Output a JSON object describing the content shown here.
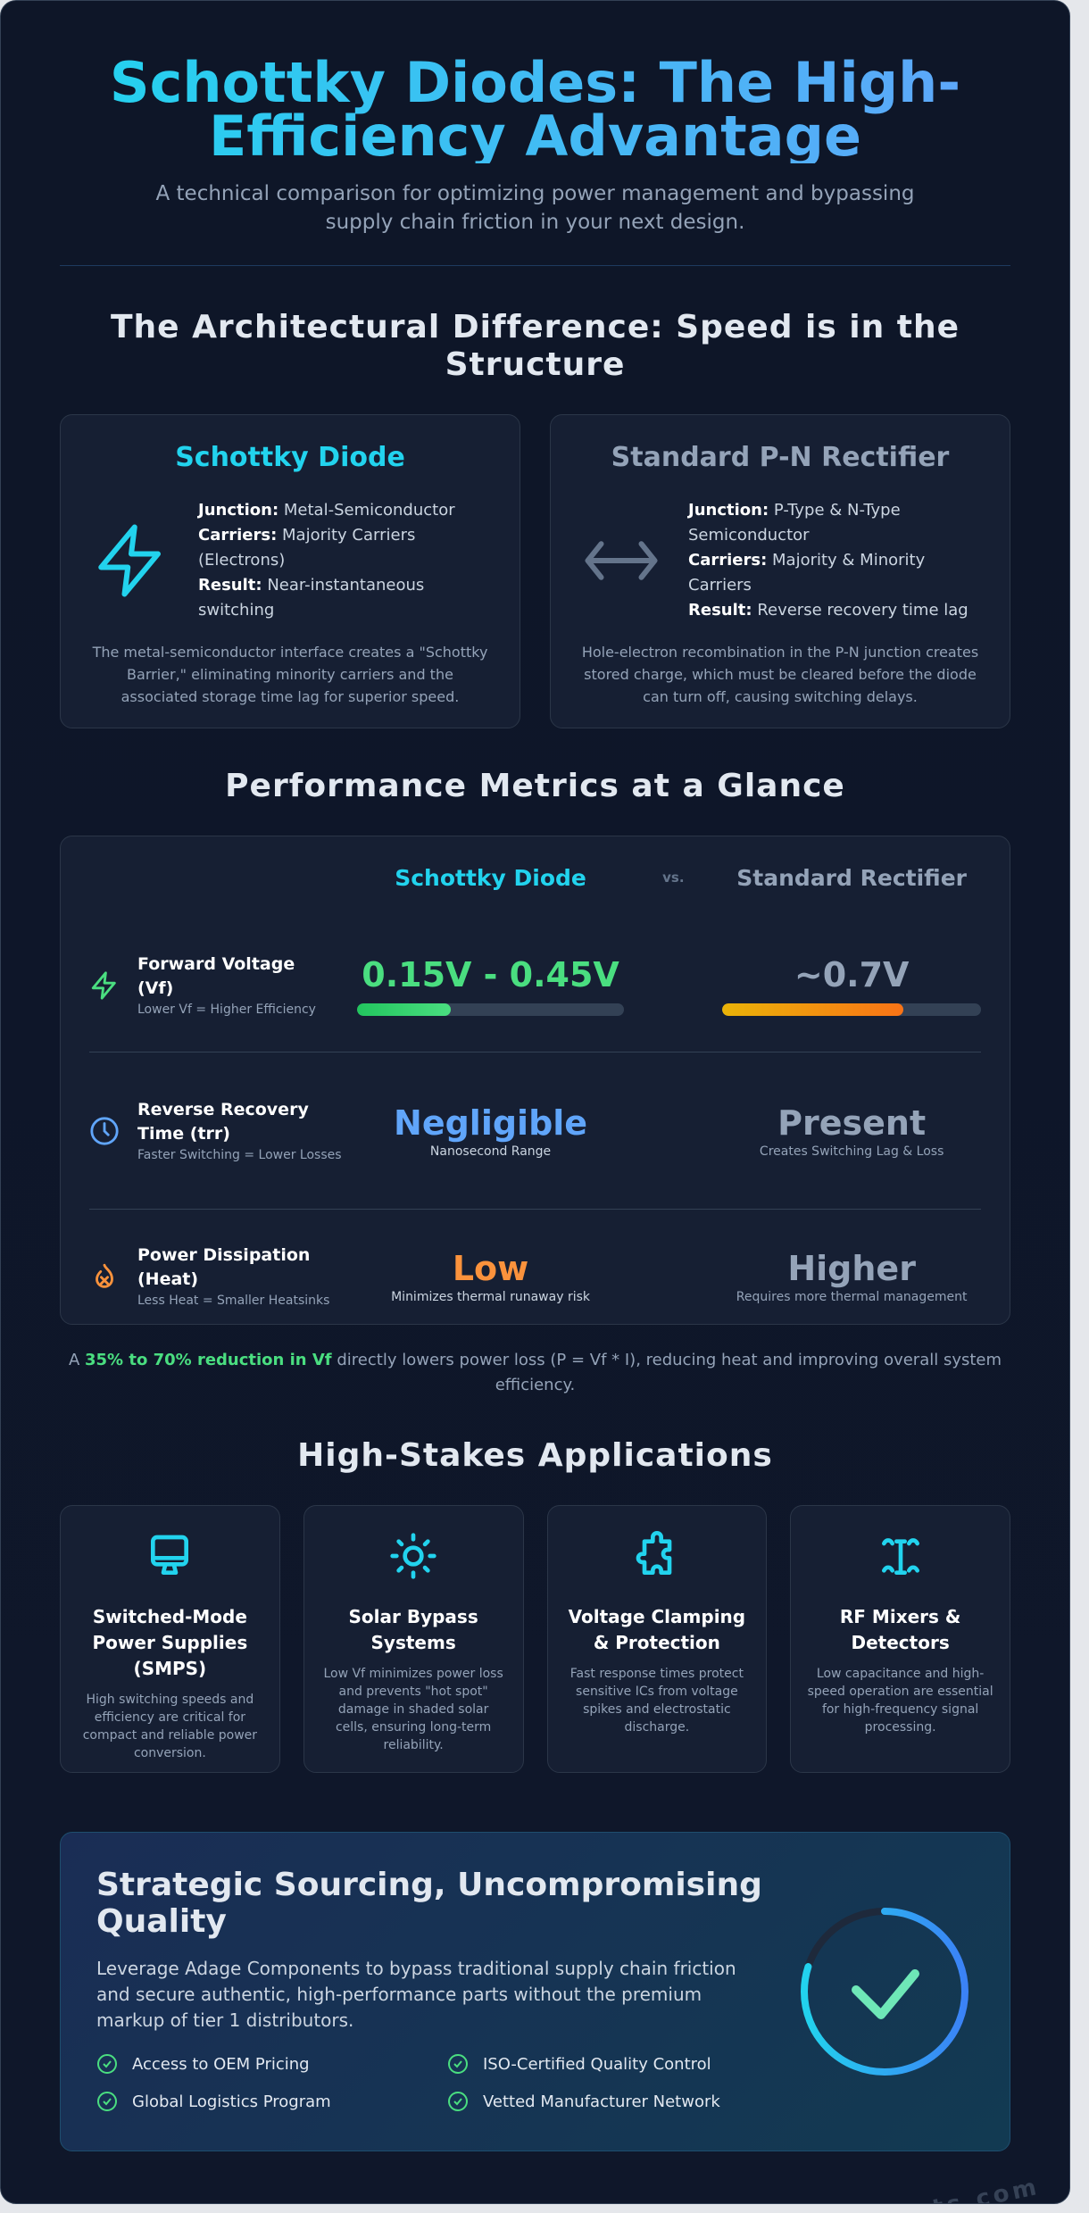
{
  "header": {
    "title": "Schottky Diodes: The High-Efficiency Advantage",
    "subtitle": "A technical comparison for optimizing power management and bypassing supply chain friction in your next design."
  },
  "architecture": {
    "heading": "The Architectural Difference: Speed is in the Structure",
    "cards": [
      {
        "title": "Schottky Diode",
        "icon": "lightning-icon",
        "color": "#22d3ee",
        "junction_label": "Junction:",
        "junction": "Metal-Semiconductor",
        "carriers_label": "Carriers:",
        "carriers": "Majority Carriers (Electrons)",
        "result_label": "Result:",
        "result": "Near-instantaneous switching",
        "desc": "The metal-semiconductor interface creates a \"Schottky Barrier,\" eliminating minority carriers and the associated storage time lag for superior speed."
      },
      {
        "title": "Standard P-N Rectifier",
        "icon": "arrows-left-right-icon",
        "color": "#94a3b8",
        "junction_label": "Junction:",
        "junction": "P-Type & N-Type Semiconductor",
        "carriers_label": "Carriers:",
        "carriers": "Majority & Minority Carriers",
        "result_label": "Result:",
        "result": "Reverse recovery time lag",
        "desc": "Hole-electron recombination in the P-N junction creates stored charge, which must be cleared before the diode can turn off, causing switching delays."
      }
    ]
  },
  "metrics": {
    "heading": "Performance Metrics at a Glance",
    "col_schottky": "Schottky Diode",
    "vs": "vs.",
    "col_standard": "Standard Rectifier",
    "rows": [
      {
        "title": "Forward Voltage (Vf)",
        "sub": "Lower Vf = Higher Efficiency",
        "schottky": "0.15V - 0.45V",
        "schottky_bar": 0.35,
        "standard": "~0.7V",
        "standard_bar": 0.7
      },
      {
        "title": "Reverse Recovery Time (trr)",
        "sub": "Faster Switching = Lower Losses",
        "schottky": "Negligible",
        "schottky_sub": "Nanosecond Range",
        "standard": "Present",
        "standard_sub": "Creates Switching Lag & Loss"
      },
      {
        "title": "Power Dissipation (Heat)",
        "sub": "Less Heat = Smaller Heatsinks",
        "schottky": "Low",
        "schottky_sub": "Minimizes thermal runaway risk",
        "standard": "Higher",
        "standard_sub": "Requires more thermal management"
      }
    ],
    "note_prefix": "A",
    "note_highlight": "35% to 70% reduction in Vf",
    "note_rest": "directly lowers power loss (P = Vf * I), reducing heat and improving overall system efficiency."
  },
  "applications": {
    "heading": "High-Stakes Applications",
    "items": [
      {
        "title": "Switched-Mode Power Supplies (SMPS)",
        "desc": "High switching speeds and efficiency are critical for compact and reliable power conversion."
      },
      {
        "title": "Solar Bypass Systems",
        "desc": "Low Vf minimizes power loss and prevents \"hot spot\" damage in shaded solar cells, ensuring long-term reliability."
      },
      {
        "title": "Voltage Clamping & Protection",
        "desc": "Fast response times protect sensitive ICs from voltage spikes and electrostatic discharge."
      },
      {
        "title": "RF Mixers & Detectors",
        "desc": "Low capacitance and high-speed operation are essential for high-frequency signal processing."
      }
    ]
  },
  "cta": {
    "title": "Strategic Sourcing, Uncompromising Quality",
    "body": "Leverage Adage Components to bypass traditional supply chain friction and secure authentic, high-performance parts without the premium markup of tier 1 distributors.",
    "features": [
      "Access to OEM Pricing",
      "ISO-Certified Quality Control",
      "Global Logistics Program",
      "Vetted Manufacturer Network"
    ],
    "ring_progress": 0.8
  },
  "watermark": "adagecomponents.com"
}
